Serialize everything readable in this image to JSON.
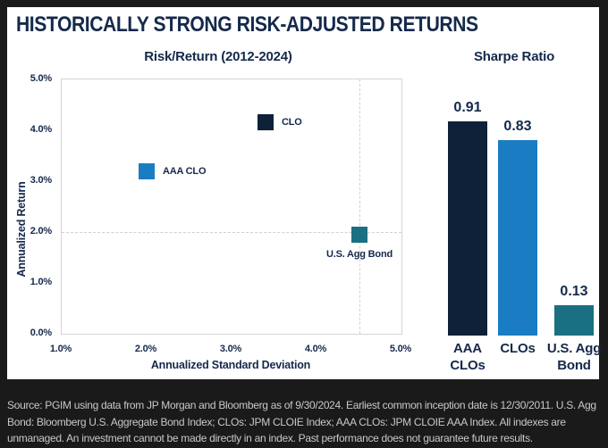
{
  "title": "HISTORICALLY STRONG RISK-ADJUSTED RETURNS",
  "colors": {
    "navy_text": "#15294B",
    "dark_navy": "#0E2138",
    "blue": "#1A7DC4",
    "teal": "#1A7082",
    "grid": "#D0D0D0",
    "card_bg": "#FFFFFF",
    "page_bg": "#1A1A1A",
    "footer_text": "#C8C8C8"
  },
  "chart_data": [
    {
      "type": "scatter",
      "title": "Risk/Return (2012-2024)",
      "xlabel": "Annualized Standard Deviation",
      "ylabel": "Annualized Return",
      "xlim": [
        1.0,
        5.0
      ],
      "ylim": [
        0.0,
        5.0
      ],
      "x_ticks": [
        "1.0%",
        "2.0%",
        "3.0%",
        "4.0%",
        "5.0%"
      ],
      "y_ticks": [
        "0.0%",
        "1.0%",
        "2.0%",
        "3.0%",
        "4.0%",
        "5.0%"
      ],
      "grid": "dashed crosshair through U.S. Agg Bond point only",
      "crosshair": {
        "x": 4.5,
        "y": 2.0
      },
      "points": [
        {
          "label": "CLO",
          "x": 3.4,
          "y": 4.15,
          "color": "#0E2138",
          "label_pos": "right"
        },
        {
          "label": "AAA CLO",
          "x": 2.0,
          "y": 3.2,
          "color": "#1A7DC4",
          "label_pos": "right"
        },
        {
          "label": "U.S. Agg Bond",
          "x": 4.5,
          "y": 1.95,
          "color": "#1A7082",
          "label_pos": "below"
        }
      ]
    },
    {
      "type": "bar",
      "title": "Sharpe Ratio",
      "categories": [
        "AAA CLOs",
        "CLOs",
        "U.S. Agg Bond"
      ],
      "values": [
        0.91,
        0.83,
        0.13
      ],
      "value_labels": [
        "0.91",
        "0.83",
        "0.13"
      ],
      "colors": [
        "#0E2138",
        "#1A7DC4",
        "#1A7082"
      ],
      "ylim": [
        0,
        1.0
      ],
      "legend": "none",
      "grid": false
    }
  ],
  "footer": {
    "text": "Source: PGIM using data from JP Morgan and Bloomberg as of 9/30/2024. Earliest common inception date is 12/30/2011. U.S. Agg Bond: Bloomberg U.S. Aggregate Bond Index; CLOs: JPM CLOIE Index; AAA CLOs: JPM CLOIE AAA Index. All indexes are unmanaged. An investment cannot be made directly in an index. Past performance does not guarantee future results."
  }
}
